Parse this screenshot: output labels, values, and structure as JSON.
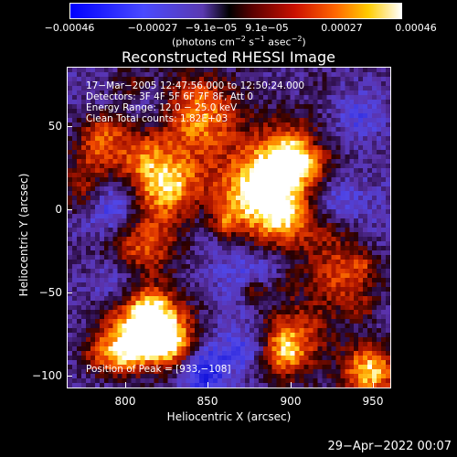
{
  "colorbar": {
    "ticks": [
      "−0.00046",
      "−0.00027",
      "−9.1e−05",
      "9.1e−05",
      "0.00027",
      "0.00046"
    ],
    "unit_prefix": "(photons cm",
    "unit_exp1": "−2",
    "unit_mid1": " s",
    "unit_exp2": "−1",
    "unit_mid2": " asec",
    "unit_exp3": "−2",
    "unit_suffix": ")"
  },
  "title": "Reconstructed RHESSI Image",
  "info": {
    "line1": "17−Mar−2005 12:47:56.000 to 12:50:24.000",
    "line2": "Detectors: 3F 4F 5F 6F 7F 8F, Att 0",
    "line3": "Energy Range: 12.0 − 25.0 keV",
    "line4": "Clean     Total counts: 1.82E+03",
    "peak": "Position of Peak = [933,−108]"
  },
  "axes": {
    "xlabel": "Heliocentric X (arcsec)",
    "ylabel": "Heliocentric Y (arcsec)",
    "xticks": [
      "800",
      "850",
      "900",
      "950"
    ],
    "yticks": [
      "50",
      "0",
      "−50",
      "−100"
    ]
  },
  "timestamp": "29−Apr−2022 00:07"
}
